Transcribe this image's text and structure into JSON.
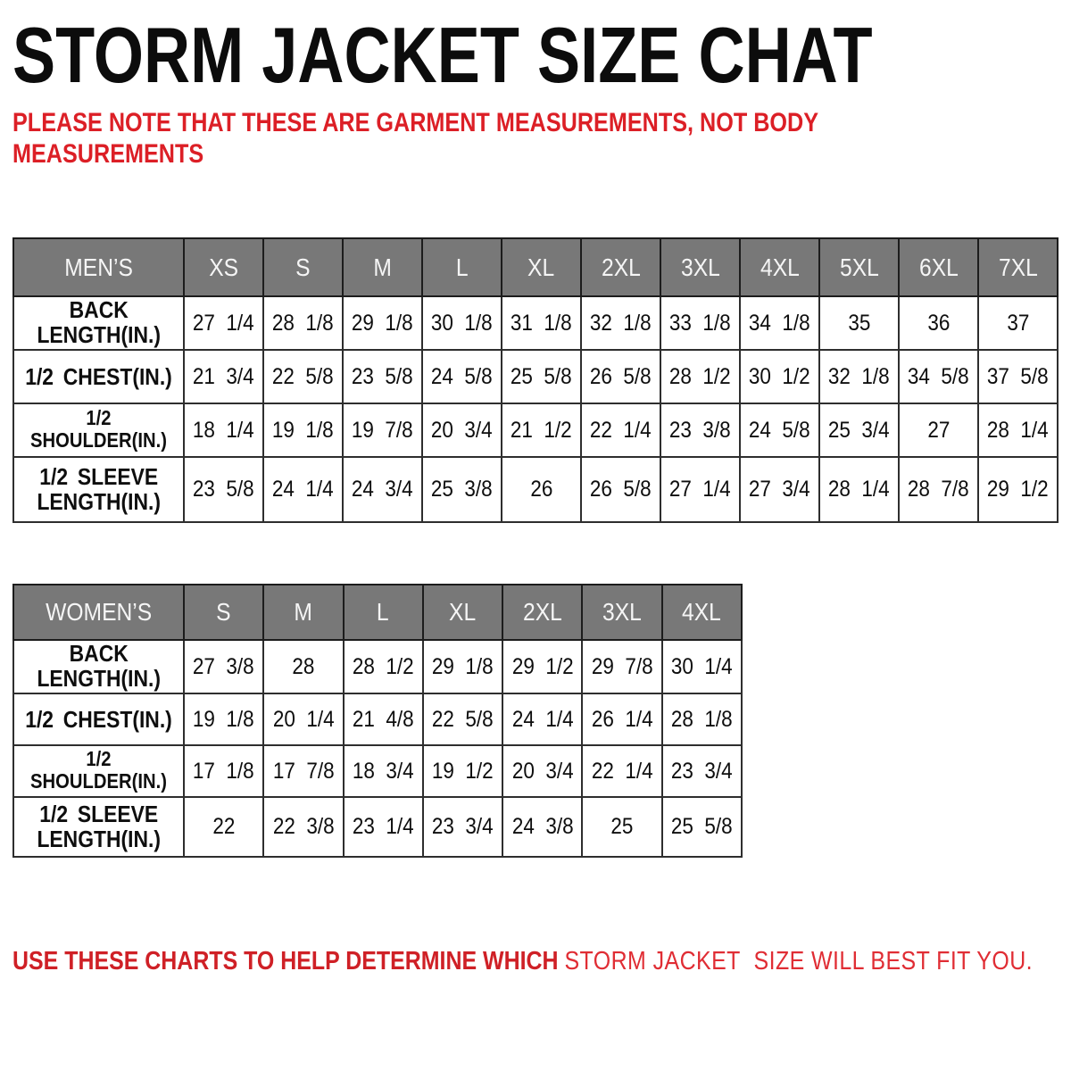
{
  "title": "STORM JACKET SIZE CHAT",
  "note": "PLEASE NOTE THAT THESE ARE GARMENT MEASUREMENTS, NOT BODY MEASUREMENTS",
  "footer": {
    "lead": "USE THESE CHARTS TO HELP DETERMINE WHICH",
    "tail": "STORM JACKET  SIZE WILL BEST FIT YOU."
  },
  "colors": {
    "header_bg": "#787878",
    "header_text": "#f5f5f5",
    "border": "#2e2e2e",
    "note_red": "#dc1f26",
    "footer_red": "#e02d34",
    "title_black": "#0c0c0c"
  },
  "tables": [
    {
      "name": "MEN’S",
      "sizes": [
        "XS",
        "S",
        "M",
        "L",
        "XL",
        "2XL",
        "3XL",
        "4XL",
        "5XL",
        "6XL",
        "7XL"
      ],
      "rows": [
        {
          "label": "BACK\nLENGTH(IN.)",
          "values": [
            "27 1/4",
            "28 1/8",
            "29 1/8",
            "30 1/8",
            "31 1/8",
            "32 1/8",
            "33 1/8",
            "34 1/8",
            "35",
            "36",
            "37"
          ]
        },
        {
          "label": "1/2 CHEST(IN.)",
          "values": [
            "21 3/4",
            "22 5/8",
            "23 5/8",
            "24 5/8",
            "25 5/8",
            "26 5/8",
            "28 1/2",
            "30 1/2",
            "32 1/8",
            "34 5/8",
            "37 5/8"
          ]
        },
        {
          "label": "1/2 SHOULDER(IN.)",
          "values": [
            "18 1/4",
            "19 1/8",
            "19 7/8",
            "20 3/4",
            "21 1/2",
            "22 1/4",
            "23 3/8",
            "24 5/8",
            "25 3/4",
            "27",
            "28 1/4"
          ]
        },
        {
          "label": "1/2 SLEEVE\nLENGTH(IN.)",
          "values": [
            "23 5/8",
            "24 1/4",
            "24 3/4",
            "25 3/8",
            "26",
            "26 5/8",
            "27 1/4",
            "27 3/4",
            "28 1/4",
            "28 7/8",
            "29 1/2"
          ]
        }
      ]
    },
    {
      "name": "WOMEN’S",
      "sizes": [
        "S",
        "M",
        "L",
        "XL",
        "2XL",
        "3XL",
        "4XL"
      ],
      "rows": [
        {
          "label": "BACK\nLENGTH(IN.)",
          "values": [
            "27 3/8",
            "28",
            "28 1/2",
            "29 1/8",
            "29 1/2",
            "29 7/8",
            "30 1/4"
          ]
        },
        {
          "label": "1/2 CHEST(IN.)",
          "values": [
            "19 1/8",
            "20 1/4",
            "21 4/8",
            "22 5/8",
            "24 1/4",
            "26 1/4",
            "28 1/8"
          ]
        },
        {
          "label": "1/2 SHOULDER(IN.)",
          "values": [
            "17 1/8",
            "17 7/8",
            "18 3/4",
            "19 1/2",
            "20 3/4",
            "22 1/4",
            "23 3/4"
          ]
        },
        {
          "label": "1/2 SLEEVE\nLENGTH(IN.)",
          "values": [
            "22",
            "22 3/8",
            "23 1/4",
            "23 3/4",
            "24 3/8",
            "25",
            "25 5/8"
          ]
        }
      ]
    }
  ]
}
